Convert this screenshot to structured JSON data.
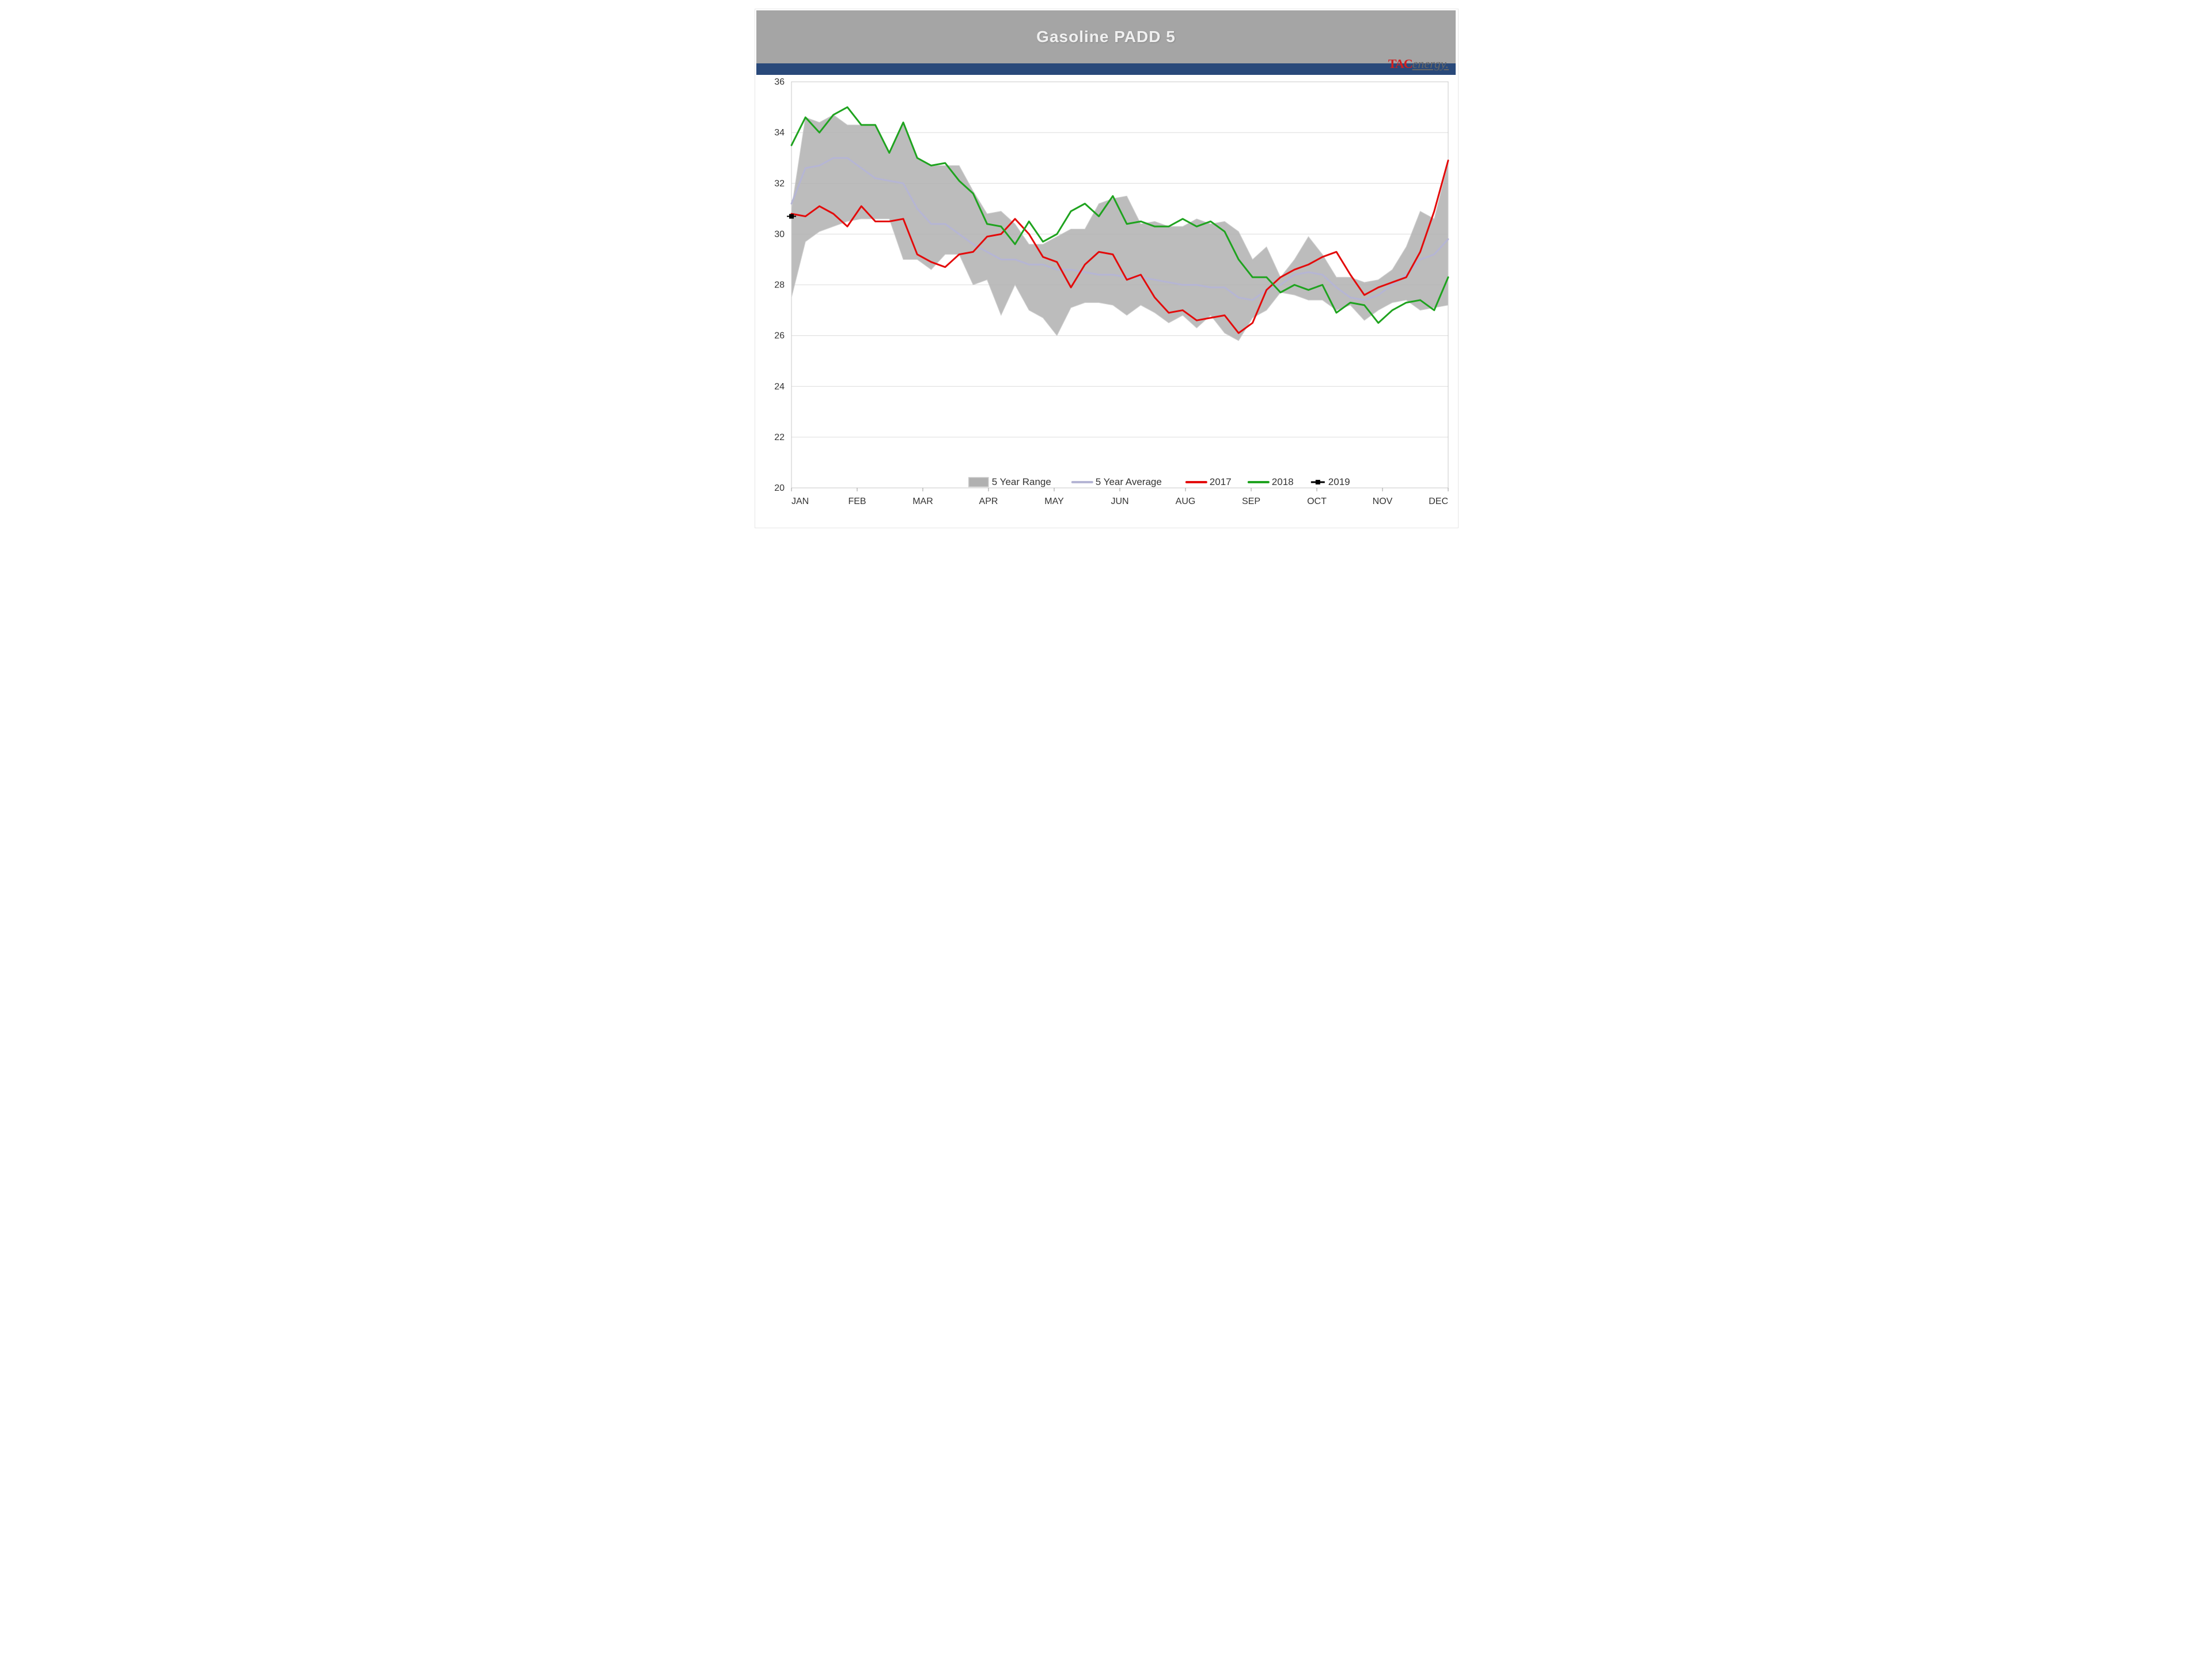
{
  "title": "Gasoline PADD 5",
  "brand": {
    "prefix": "TAC",
    "suffix": "energy."
  },
  "chart": {
    "type": "line",
    "background_color": "#ffffff",
    "title_color": "#f0f0f0",
    "title_bar_color": "#a5a5a5",
    "blue_strip_color": "#29497a",
    "grid_color": "#dcdcdc",
    "axis_text_color": "#333333",
    "y": {
      "min": 20,
      "max": 36,
      "ticks": [
        20,
        22,
        24,
        26,
        28,
        30,
        32,
        34,
        36
      ],
      "tick_fontsize": 16
    },
    "x": {
      "labels": [
        "JAN",
        "FEB",
        "MAR",
        "APR",
        "MAY",
        "JUN",
        "AUG",
        "SEP",
        "OCT",
        "NOV",
        "DEC"
      ],
      "tick_fontsize": 16,
      "points": 48
    },
    "range_band": {
      "label": "5 Year Range",
      "fill": "#b0b0b0",
      "stroke": "#d0d0d0",
      "upper": [
        31.0,
        34.6,
        34.4,
        34.7,
        34.3,
        34.3,
        34.3,
        33.2,
        34.4,
        33.0,
        32.7,
        32.7,
        32.7,
        31.7,
        30.8,
        30.9,
        30.4,
        29.6,
        29.6,
        29.9,
        30.2,
        30.2,
        31.2,
        31.4,
        31.5,
        30.4,
        30.5,
        30.3,
        30.3,
        30.6,
        30.4,
        30.5,
        30.1,
        29.0,
        29.5,
        28.3,
        29.0,
        29.9,
        29.2,
        28.3,
        28.3,
        28.1,
        28.2,
        28.6,
        29.5,
        30.9,
        30.6,
        32.8
      ],
      "lower": [
        27.5,
        29.7,
        30.1,
        30.3,
        30.5,
        30.6,
        30.6,
        30.6,
        29.0,
        29.0,
        28.6,
        29.2,
        29.2,
        28.0,
        28.2,
        26.8,
        28.0,
        27.0,
        26.7,
        26.0,
        27.1,
        27.3,
        27.3,
        27.2,
        26.8,
        27.2,
        26.9,
        26.5,
        26.8,
        26.3,
        26.8,
        26.1,
        25.8,
        26.7,
        27.0,
        27.7,
        27.6,
        27.4,
        27.4,
        27.0,
        27.2,
        26.6,
        27.0,
        27.3,
        27.4,
        27.0,
        27.1,
        27.2
      ]
    },
    "series": [
      {
        "name": "5 Year Average",
        "color": "#b5b5d4",
        "width": 3,
        "y": [
          31.2,
          32.6,
          32.7,
          33.0,
          33.0,
          32.6,
          32.2,
          32.1,
          32.0,
          31.0,
          30.4,
          30.4,
          30.0,
          29.6,
          29.3,
          29.0,
          29.0,
          28.8,
          28.8,
          28.6,
          28.6,
          28.5,
          28.4,
          28.4,
          28.3,
          28.3,
          28.2,
          28.1,
          28.0,
          28.0,
          27.9,
          27.9,
          27.5,
          27.4,
          27.8,
          28.0,
          28.4,
          28.5,
          28.4,
          27.9,
          27.5,
          27.4,
          27.6,
          28.0,
          28.4,
          29.0,
          29.2,
          29.8
        ]
      },
      {
        "name": "2017",
        "color": "#e30b0b",
        "width": 3,
        "y": [
          30.8,
          30.7,
          31.1,
          30.8,
          30.3,
          31.1,
          30.5,
          30.5,
          30.6,
          29.2,
          28.9,
          28.7,
          29.2,
          29.3,
          29.9,
          30.0,
          30.6,
          30.0,
          29.1,
          28.9,
          27.9,
          28.8,
          29.3,
          29.2,
          28.2,
          28.4,
          27.5,
          26.9,
          27.0,
          26.6,
          26.7,
          26.8,
          26.1,
          26.5,
          27.8,
          28.3,
          28.6,
          28.8,
          29.1,
          29.3,
          28.4,
          27.6,
          27.9,
          28.1,
          28.3,
          29.3,
          30.9,
          32.9
        ]
      },
      {
        "name": "2018",
        "color": "#1fa31f",
        "width": 3,
        "y": [
          33.5,
          34.6,
          34.0,
          34.7,
          35.0,
          34.3,
          34.3,
          33.2,
          34.4,
          33.0,
          32.7,
          32.8,
          32.1,
          31.6,
          30.4,
          30.3,
          29.6,
          30.5,
          29.7,
          30.0,
          30.9,
          31.2,
          30.7,
          31.5,
          30.4,
          30.5,
          30.3,
          30.3,
          30.6,
          30.3,
          30.5,
          30.1,
          29.0,
          28.3,
          28.3,
          27.7,
          28.0,
          27.8,
          28.0,
          26.9,
          27.3,
          27.2,
          26.5,
          27.0,
          27.3,
          27.4,
          27.0,
          28.3
        ]
      }
    ],
    "point_series": {
      "name": "2019",
      "color": "#000000",
      "marker": "square",
      "marker_size": 8,
      "points": [
        [
          0,
          30.7
        ]
      ]
    },
    "legend": {
      "fontsize": 17,
      "items": [
        {
          "kind": "band",
          "label": "5 Year Range",
          "fill": "#b0b0b0",
          "stroke": "#c8c8c8"
        },
        {
          "kind": "line",
          "label": "5 Year Average",
          "color": "#b5b5d4"
        },
        {
          "kind": "line",
          "label": "2017",
          "color": "#e30b0b"
        },
        {
          "kind": "line",
          "label": "2018",
          "color": "#1fa31f"
        },
        {
          "kind": "marker",
          "label": "2019",
          "color": "#000000"
        }
      ]
    }
  }
}
